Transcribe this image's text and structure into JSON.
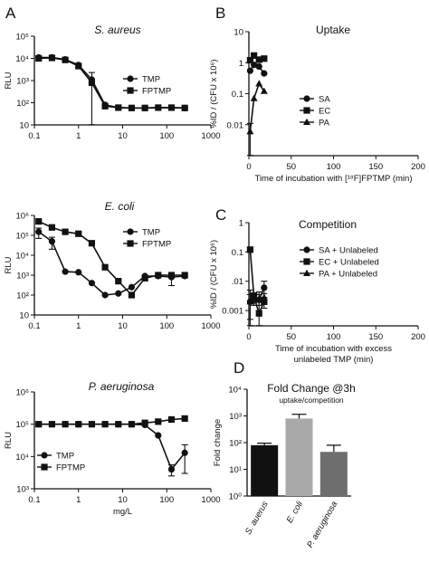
{
  "chart_data": [
    {
      "panel": "A",
      "type": "line",
      "title": "S. aureus",
      "xlabel": "",
      "ylabel": "RLU",
      "xscale": "log",
      "yscale": "log",
      "xlim": [
        0.1,
        1000
      ],
      "ylim": [
        10,
        100000
      ],
      "xticks": [
        "0.1",
        "1",
        "10",
        "100",
        "1000"
      ],
      "yticks": [
        "10",
        "10²",
        "10³",
        "10⁴",
        "10⁵"
      ],
      "legend": "right",
      "series": [
        {
          "name": "TMP",
          "marker": "circle",
          "x": [
            0.125,
            0.25,
            0.5,
            1,
            2,
            4,
            8,
            16,
            32,
            64,
            128,
            256
          ],
          "y": [
            11000,
            11000,
            9000,
            5000,
            1100,
            80,
            60,
            58,
            58,
            60,
            60,
            58
          ],
          "err": [
            0,
            0,
            0,
            0,
            1200,
            0,
            0,
            0,
            0,
            0,
            0,
            0
          ]
        },
        {
          "name": "FPTMP",
          "marker": "square",
          "x": [
            0.125,
            0.25,
            0.5,
            1,
            2,
            4,
            8,
            16,
            32,
            64,
            128,
            256
          ],
          "y": [
            10000,
            10500,
            8500,
            4500,
            800,
            70,
            60,
            58,
            58,
            60,
            60,
            58
          ],
          "err": [
            0,
            0,
            0,
            0,
            0,
            0,
            0,
            0,
            0,
            0,
            0,
            0
          ]
        }
      ]
    },
    {
      "panel": "",
      "type": "line",
      "title": "E. coli",
      "xlabel": "",
      "ylabel": "RLU",
      "xscale": "log",
      "yscale": "log",
      "xlim": [
        0.1,
        1000
      ],
      "ylim": [
        10,
        1000000
      ],
      "xticks": [
        "0.1",
        "1",
        "10",
        "100",
        "1000"
      ],
      "yticks": [
        "10",
        "10²",
        "10³",
        "10⁴",
        "10⁵",
        "10⁶"
      ],
      "legend": "right",
      "series": [
        {
          "name": "TMP",
          "marker": "circle",
          "x": [
            0.125,
            0.25,
            0.5,
            1,
            2,
            4,
            8,
            16,
            32,
            64,
            128,
            256
          ],
          "y": [
            150000,
            50000,
            1500,
            1400,
            400,
            100,
            120,
            250,
            900,
            900,
            800,
            900
          ],
          "err": [
            80000,
            30000,
            0,
            0,
            0,
            0,
            0,
            0,
            0,
            0,
            500,
            0
          ]
        },
        {
          "name": "FPTMP",
          "marker": "square",
          "x": [
            0.125,
            0.25,
            0.5,
            1,
            2,
            4,
            8,
            16,
            32,
            64,
            128,
            256
          ],
          "y": [
            500000,
            250000,
            150000,
            120000,
            40000,
            2500,
            500,
            100,
            700,
            1000,
            1000,
            1000
          ],
          "err": [
            0,
            0,
            0,
            0,
            0,
            0,
            0,
            0,
            0,
            0,
            0,
            0
          ]
        }
      ]
    },
    {
      "panel": "",
      "type": "line",
      "title": "P. aeruginosa",
      "xlabel": "mg/L",
      "ylabel": "RLU",
      "xscale": "log",
      "yscale": "log",
      "xlim": [
        0.1,
        1000
      ],
      "ylim": [
        1000,
        1000000
      ],
      "xticks": [
        "0.1",
        "1",
        "10",
        "100",
        "1000"
      ],
      "yticks": [
        "10³",
        "10⁴",
        "10⁵",
        "10⁶"
      ],
      "legend": "bottom-left",
      "series": [
        {
          "name": "TMP",
          "marker": "circle",
          "x": [
            0.125,
            0.25,
            0.5,
            1,
            2,
            4,
            8,
            16,
            32,
            64,
            128,
            256
          ],
          "y": [
            100000,
            100000,
            100000,
            100000,
            100000,
            100000,
            100000,
            100000,
            95000,
            45000,
            4000,
            13000
          ],
          "err": [
            0,
            0,
            0,
            0,
            0,
            0,
            0,
            0,
            0,
            0,
            1500,
            10000
          ]
        },
        {
          "name": "FPTMP",
          "marker": "square",
          "x": [
            0.125,
            0.25,
            0.5,
            1,
            2,
            4,
            8,
            16,
            32,
            64,
            128,
            256
          ],
          "y": [
            100000,
            100000,
            100000,
            100000,
            100000,
            100000,
            100000,
            100000,
            110000,
            120000,
            140000,
            150000
          ],
          "err": [
            0,
            0,
            0,
            0,
            0,
            0,
            0,
            0,
            0,
            0,
            0,
            0
          ]
        }
      ]
    },
    {
      "panel": "B",
      "type": "line",
      "title": "Uptake",
      "xlabel": "Time of incubation with [¹⁸F]FPTMP (min)",
      "ylabel": "%ID / (CFU x 10⁶)",
      "xscale": "linear",
      "yscale": "log",
      "xlim": [
        0,
        2000
      ],
      "ylim": [
        0.001,
        10
      ],
      "xticks": [
        "0",
        "50",
        "100",
        "150",
        "200"
      ],
      "yticks": [
        "0.01",
        "0.1",
        "1",
        "10"
      ],
      "legend": "bottom-right",
      "series": [
        {
          "name": "SA",
          "marker": "circle",
          "x": [
            15,
            60,
            120,
            180
          ],
          "y": [
            0.55,
            0.85,
            0.75,
            0.45
          ],
          "err": [
            0,
            0,
            0,
            0
          ]
        },
        {
          "name": "EC",
          "marker": "square",
          "x": [
            15,
            60,
            120,
            180
          ],
          "y": [
            1.2,
            1.7,
            1.25,
            1.35
          ],
          "err": [
            0,
            0,
            0,
            0
          ]
        },
        {
          "name": "PA",
          "marker": "triangle",
          "x": [
            15,
            60,
            120,
            180
          ],
          "y": [
            0.006,
            0.07,
            0.21,
            0.12
          ],
          "err": [
            0.005,
            0,
            0,
            0
          ]
        }
      ]
    },
    {
      "panel": "C",
      "type": "line",
      "title": "Competition",
      "xlabel": "Time of incubation with excess unlabeled TMP (min)",
      "ylabel": "%ID / (CFU x 10⁶)",
      "xscale": "linear",
      "yscale": "log",
      "xlim": [
        0,
        2000
      ],
      "ylim": [
        0.0003,
        1
      ],
      "xticks": [
        "0",
        "50",
        "100",
        "150",
        "200"
      ],
      "yticks": [
        "0.001",
        ".01",
        "0.1",
        "1"
      ],
      "legend": "top-right",
      "series": [
        {
          "name": "SA + Unlabeled",
          "marker": "circle",
          "x": [
            15,
            60,
            120,
            180
          ],
          "y": [
            0.002,
            0.0025,
            0.0023,
            0.006
          ],
          "err": [
            0.003,
            0.001,
            0.002,
            0.004
          ]
        },
        {
          "name": "EC + Unlabeled",
          "marker": "square",
          "x": [
            15,
            60,
            120,
            180
          ],
          "y": [
            0.12,
            0.003,
            0.0008,
            0.002
          ],
          "err": [
            0,
            0.001,
            0,
            0.0008
          ]
        },
        {
          "name": "PA + Unlabeled",
          "marker": "triangle",
          "x": [
            15,
            60,
            120,
            180
          ],
          "y": [
            0.002,
            0.0028,
            0.0025,
            0.0028
          ],
          "err": [
            0.0015,
            0.001,
            0.001,
            0.001
          ]
        }
      ]
    },
    {
      "panel": "D",
      "type": "bar",
      "title": "Fold Change @3h",
      "subtitle": "uptake/competition",
      "xlabel": "",
      "ylabel": "Fold change",
      "yscale": "log",
      "ylim": [
        1,
        10000
      ],
      "yticks": [
        "10⁰",
        "10¹",
        "10²",
        "10³",
        "10⁴"
      ],
      "categories": [
        "S. auerus",
        "E. coli",
        "P. aeruginosa"
      ],
      "values": [
        80,
        800,
        45
      ],
      "err": [
        15,
        350,
        35
      ],
      "colors": [
        "#111111",
        "#a9a9a9",
        "#6e6e6e"
      ]
    }
  ]
}
